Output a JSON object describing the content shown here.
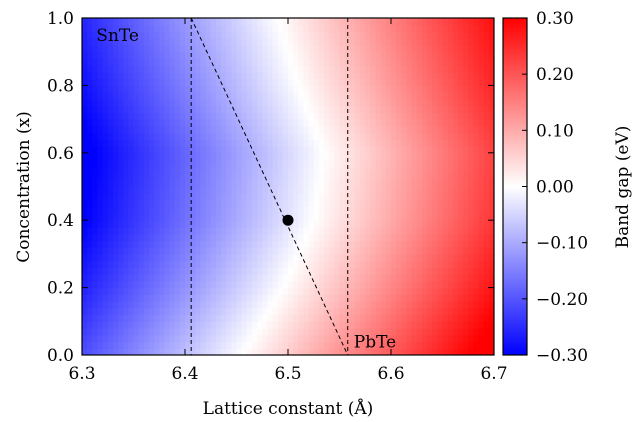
{
  "chart_data": {
    "type": "heatmap",
    "xlabel": "Lattice constant (Å)",
    "ylabel": "Concentration (x)",
    "xlim": [
      6.3,
      6.7
    ],
    "ylim": [
      0.0,
      1.0
    ],
    "x_ticks": [
      6.3,
      6.4,
      6.5,
      6.6,
      6.7
    ],
    "x_tick_labels": [
      "6.3",
      "6.4",
      "6.5",
      "6.6",
      "6.7"
    ],
    "y_ticks": [
      0.0,
      0.2,
      0.4,
      0.6,
      0.8,
      1.0
    ],
    "y_tick_labels": [
      "0.0",
      "0.2",
      "0.4",
      "0.6",
      "0.8",
      "1.0"
    ],
    "colorbar": {
      "label": "Band gap (eV)",
      "range": [
        -0.3,
        0.3
      ],
      "ticks": [
        -0.3,
        -0.2,
        -0.1,
        0.0,
        0.1,
        0.2,
        0.3
      ],
      "tick_labels": [
        "−0.30",
        "−0.20",
        "−0.10",
        "0.00",
        "0.10",
        "0.20",
        "0.30"
      ],
      "colormap": [
        "#0000ff",
        "#ffffff",
        "#ff0000"
      ]
    },
    "band_gap_model": {
      "note_units": "eV",
      "zero_gap_line_x": [
        {
          "y": 0.0,
          "x": 6.455
        },
        {
          "y": 0.2,
          "x": 6.495
        },
        {
          "y": 0.4,
          "x": 6.525
        },
        {
          "y": 0.6,
          "x": 6.535
        },
        {
          "y": 0.8,
          "x": 6.51
        },
        {
          "y": 1.0,
          "x": 6.49
        }
      ],
      "slope_eV_per_A": 1.35
    },
    "vertical_lines": [
      {
        "x": 6.406,
        "style": "dashed"
      },
      {
        "x": 6.558,
        "style": "dashed"
      }
    ],
    "diagonal_line": {
      "x": [
        6.406,
        6.558
      ],
      "y": [
        1.0,
        0.0
      ],
      "style": "dashed"
    },
    "points": [
      {
        "x": 6.5,
        "y": 0.4
      }
    ],
    "annotations": [
      {
        "text": "SnTe",
        "x": 6.31,
        "y": 0.95
      },
      {
        "text": "PbTe",
        "x": 6.56,
        "y": 0.04
      }
    ]
  }
}
